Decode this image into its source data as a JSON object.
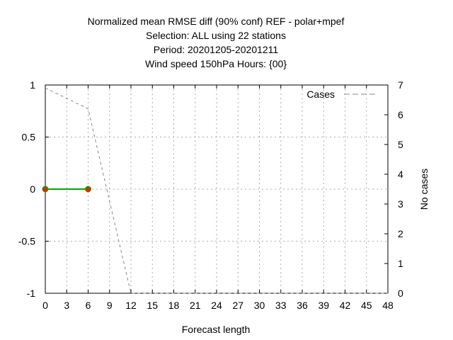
{
  "chart_data": {
    "type": "line",
    "title_lines": [
      "Normalized mean RMSE diff (90% conf) REF - polar+mpef",
      "Selection: ALL using    22 stations",
      "Period: 20201205-20201211",
      "Wind speed 150hPa   Hours: {00}"
    ],
    "xlabel": "Forecast length",
    "ylabel": "",
    "y2label": "No cases",
    "xlim": [
      0,
      48
    ],
    "ylim": [
      -1,
      1
    ],
    "y2lim": [
      0,
      7
    ],
    "x_ticks": [
      "0",
      "3",
      "6",
      "9",
      "12",
      "15",
      "18",
      "21",
      "24",
      "27",
      "30",
      "33",
      "36",
      "39",
      "42",
      "45",
      "48"
    ],
    "y_ticks": [
      "1",
      "0.5",
      "0",
      "-0.5",
      "-1"
    ],
    "y2_ticks": [
      "7",
      "6",
      "5",
      "4",
      "3",
      "2",
      "1",
      "0"
    ],
    "grid": true,
    "legend_position": "top-right",
    "series": [
      {
        "name": "",
        "axis": "left",
        "style": "solid",
        "color": "#00aa00",
        "marker_color": "#cc3300",
        "x": [
          0,
          6
        ],
        "y": [
          0,
          0
        ]
      },
      {
        "name": "Cases",
        "axis": "right",
        "style": "dashed",
        "color": "#888888",
        "x": [
          0,
          6,
          12,
          48
        ],
        "y": [
          6.9,
          6.2,
          0,
          0
        ]
      }
    ]
  }
}
